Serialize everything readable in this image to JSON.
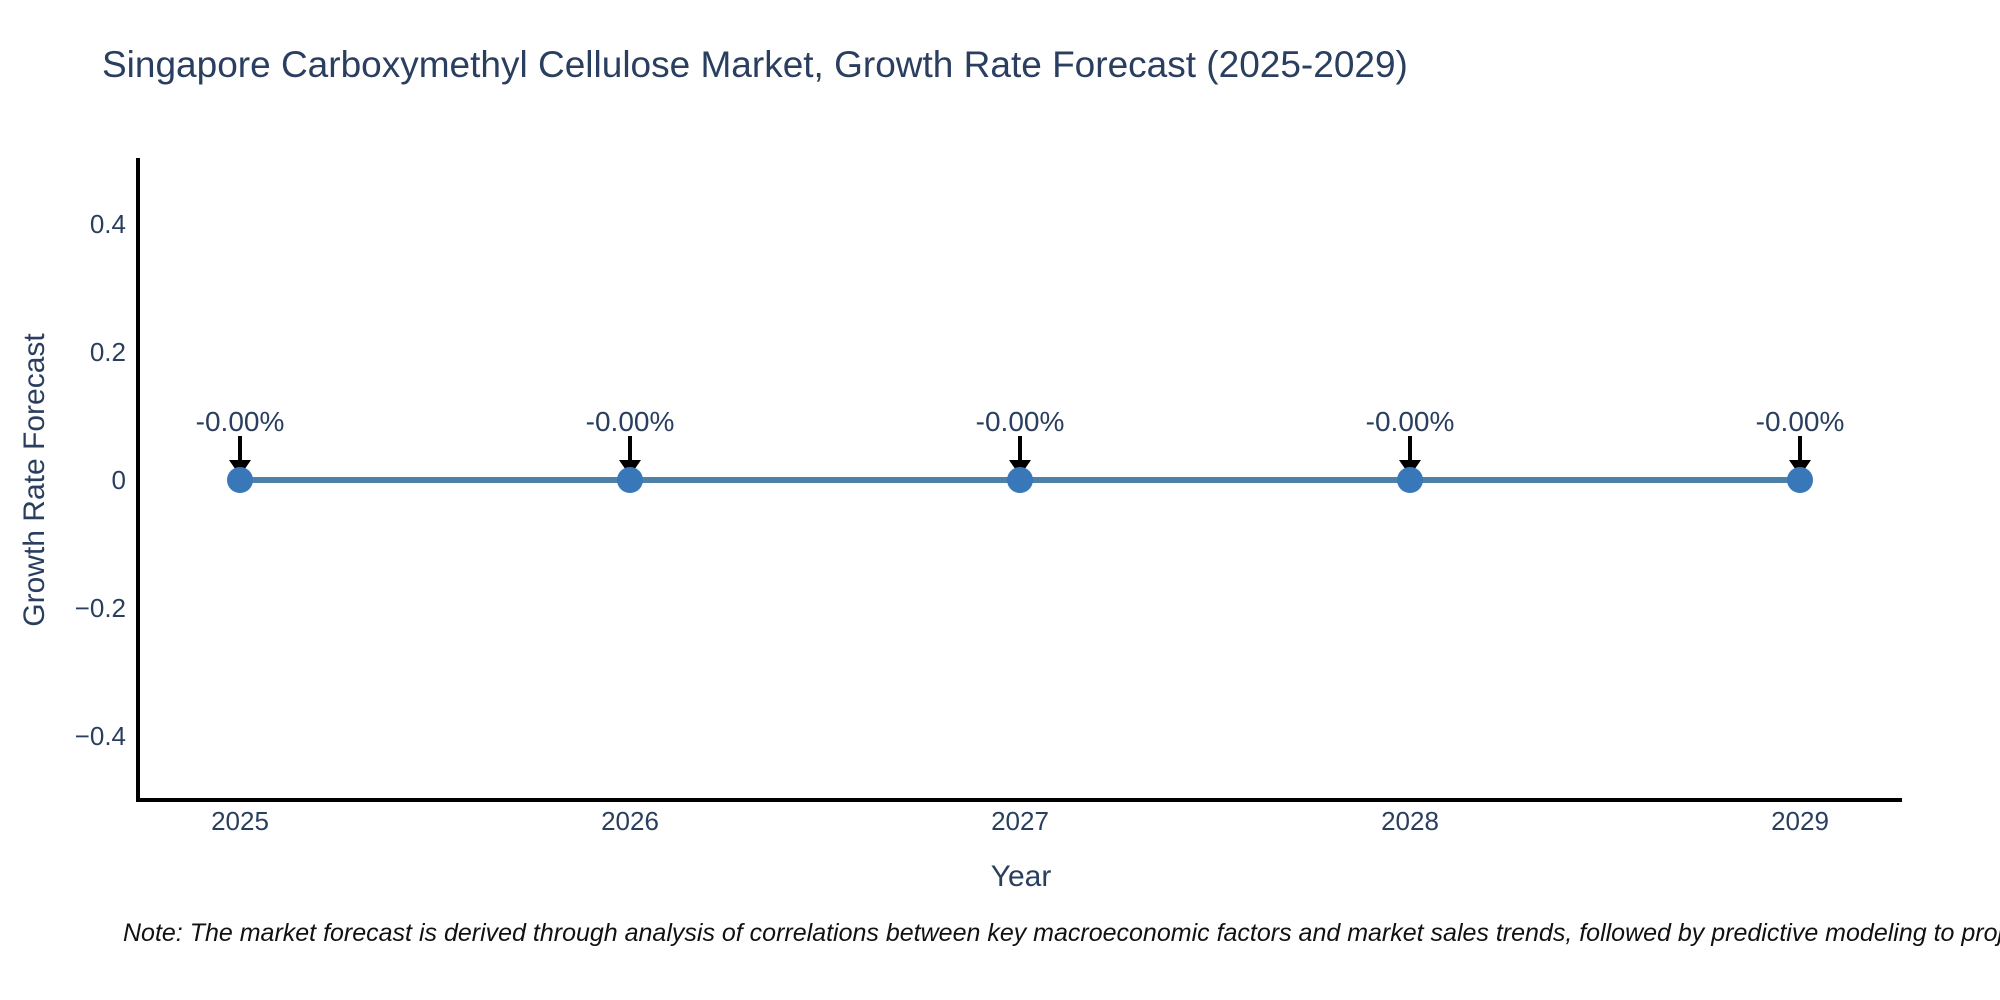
{
  "note": "Note: The market forecast is derived through analysis of correlations between key macroeconomic factors and market sales trends, followed by predictive modeling to project future sales.",
  "chart_data": {
    "type": "line",
    "title": "Singapore Carboxymethyl Cellulose Market, Growth Rate Forecast (2025-2029)",
    "xlabel": "Year",
    "ylabel": "Growth Rate Forecast",
    "x": [
      2025,
      2026,
      2027,
      2028,
      2029
    ],
    "values": [
      0,
      0,
      0,
      0,
      0
    ],
    "point_labels": [
      "-0.00%",
      "-0.00%",
      "-0.00%",
      "-0.00%",
      "-0.00%"
    ],
    "xticks": [
      "2025",
      "2026",
      "2027",
      "2028",
      "2029"
    ],
    "yticks": [
      "0.4",
      "0.2",
      "0",
      "−0.2",
      "−0.4"
    ],
    "ytick_values": [
      0.4,
      0.2,
      0,
      -0.2,
      -0.4
    ],
    "ylim": [
      -0.5,
      0.5
    ],
    "grid": false,
    "legend": false,
    "colors": {
      "line": "#4d81a8",
      "marker": "#3878b8",
      "axis": "#000000",
      "text": "#2a3f5f",
      "annotation_arrow": "#000000"
    }
  }
}
